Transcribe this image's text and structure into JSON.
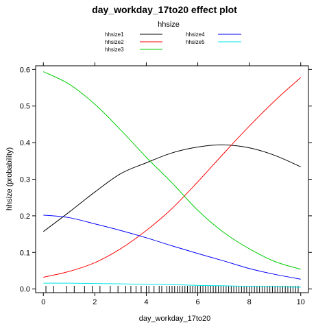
{
  "chart_data": {
    "type": "line",
    "title": "day_workday_17to20 effect plot",
    "xlabel": "day_workday_17to20",
    "ylabel": "hhsize (probability)",
    "legend_title": "hhsize",
    "legend_placement": "top-center",
    "xlim": [
      -0.3,
      10.3
    ],
    "ylim": [
      -0.01,
      0.61
    ],
    "x_ticks": [
      0,
      2,
      4,
      6,
      8,
      10
    ],
    "y_ticks": [
      0.0,
      0.1,
      0.2,
      0.3,
      0.4,
      0.5,
      0.6
    ],
    "x_tick_labels": [
      "0",
      "2",
      "4",
      "6",
      "8",
      "10"
    ],
    "y_tick_labels": [
      "0.0",
      "0.1",
      "0.2",
      "0.3",
      "0.4",
      "0.5",
      "0.6"
    ],
    "grid": false,
    "x": [
      0,
      1,
      2,
      3,
      4,
      5,
      6,
      7,
      8,
      9,
      10
    ],
    "series": [
      {
        "name": "hhsize1",
        "color": "#000000",
        "values": [
          0.157,
          0.21,
          0.265,
          0.315,
          0.345,
          0.372,
          0.388,
          0.394,
          0.386,
          0.365,
          0.334
        ]
      },
      {
        "name": "hhsize2",
        "color": "#ff0000",
        "values": [
          0.032,
          0.048,
          0.072,
          0.11,
          0.16,
          0.22,
          0.293,
          0.37,
          0.445,
          0.515,
          0.578
        ]
      },
      {
        "name": "hhsize3",
        "color": "#00cc00",
        "values": [
          0.594,
          0.56,
          0.505,
          0.435,
          0.36,
          0.29,
          0.215,
          0.155,
          0.11,
          0.075,
          0.054
        ]
      },
      {
        "name": "hhsize4",
        "color": "#0000ff",
        "values": [
          0.202,
          0.195,
          0.178,
          0.16,
          0.14,
          0.118,
          0.097,
          0.077,
          0.056,
          0.04,
          0.027
        ]
      },
      {
        "name": "hhsize5",
        "color": "#00e5e5",
        "values": [
          0.016,
          0.016,
          0.015,
          0.014,
          0.013,
          0.012,
          0.01,
          0.009,
          0.007,
          0.006,
          0.005
        ]
      }
    ],
    "rug_x": [
      0.1,
      0.4,
      0.9,
      1.2,
      1.6,
      1.9,
      2.2,
      2.6,
      2.9,
      3.2,
      3.4,
      3.6,
      3.8,
      4.0,
      4.1,
      4.3,
      4.5,
      4.6,
      4.8,
      4.9,
      5.0,
      5.1,
      5.2,
      5.3,
      5.4,
      5.5,
      5.6,
      5.7,
      5.8,
      5.9,
      6.0,
      6.1,
      6.2,
      6.3,
      6.4,
      6.5,
      6.6,
      6.7,
      6.8,
      6.9,
      7.0,
      7.1,
      7.2,
      7.3,
      7.4,
      7.5,
      7.6,
      7.7,
      7.8,
      7.9,
      8.0,
      8.1,
      8.2,
      8.3,
      8.4,
      8.5,
      8.6,
      8.7,
      8.8,
      8.9,
      9.0,
      9.1,
      9.2,
      9.3,
      9.4,
      9.5,
      9.6,
      9.7,
      9.8,
      9.9
    ]
  }
}
